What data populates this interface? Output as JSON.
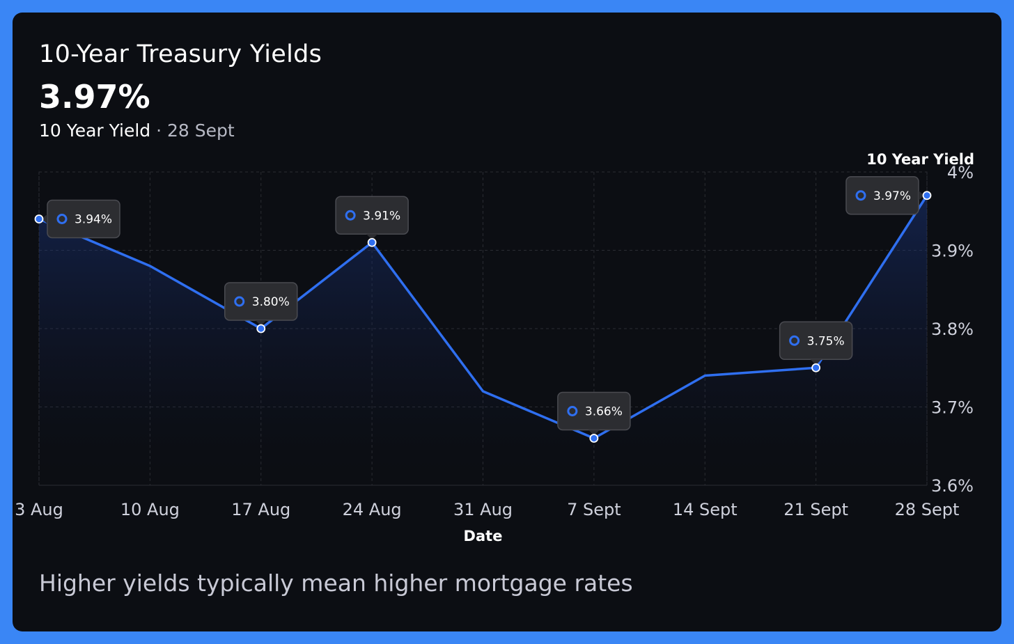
{
  "card": {
    "title": "10-Year Treasury Yields",
    "current_value": "3.97%",
    "subtitle_label": "10 Year Yield",
    "subtitle_separator": "·",
    "subtitle_date": "28 Sept",
    "footer_note": "Higher yields typically mean higher mortgage rates"
  },
  "colors": {
    "page_border": "#3a86f5",
    "card_background": "#0c0e13",
    "line": "#2f6ff0",
    "tooltip_background": "#2c2d31",
    "grid": "#2a2c33"
  },
  "chart_data": {
    "type": "line",
    "x": [
      "3 Aug",
      "10 Aug",
      "17 Aug",
      "24 Aug",
      "31 Aug",
      "7 Sept",
      "14 Sept",
      "21 Sept",
      "28 Sept"
    ],
    "series": [
      {
        "name": "10 Year Yield",
        "values": [
          3.94,
          3.88,
          3.8,
          3.91,
          3.72,
          3.66,
          3.74,
          3.75,
          3.97
        ]
      }
    ],
    "point_labels": [
      {
        "index": 0,
        "text": "3.94%"
      },
      {
        "index": 2,
        "text": "3.80%"
      },
      {
        "index": 3,
        "text": "3.91%"
      },
      {
        "index": 5,
        "text": "3.66%"
      },
      {
        "index": 7,
        "text": "3.75%"
      },
      {
        "index": 8,
        "text": "3.97%"
      }
    ],
    "xlabel": "Date",
    "ylabel": "",
    "ylim": [
      3.6,
      4.0
    ],
    "y_ticks": [
      {
        "value": 3.6,
        "label": "3.6%"
      },
      {
        "value": 3.7,
        "label": "3.7%"
      },
      {
        "value": 3.8,
        "label": "3.8%"
      },
      {
        "value": 3.9,
        "label": "3.9%"
      },
      {
        "value": 4.0,
        "label": "4%"
      }
    ],
    "y_axis_position": "right",
    "grid": true,
    "legend_position": "top-right",
    "area_fill": true
  }
}
